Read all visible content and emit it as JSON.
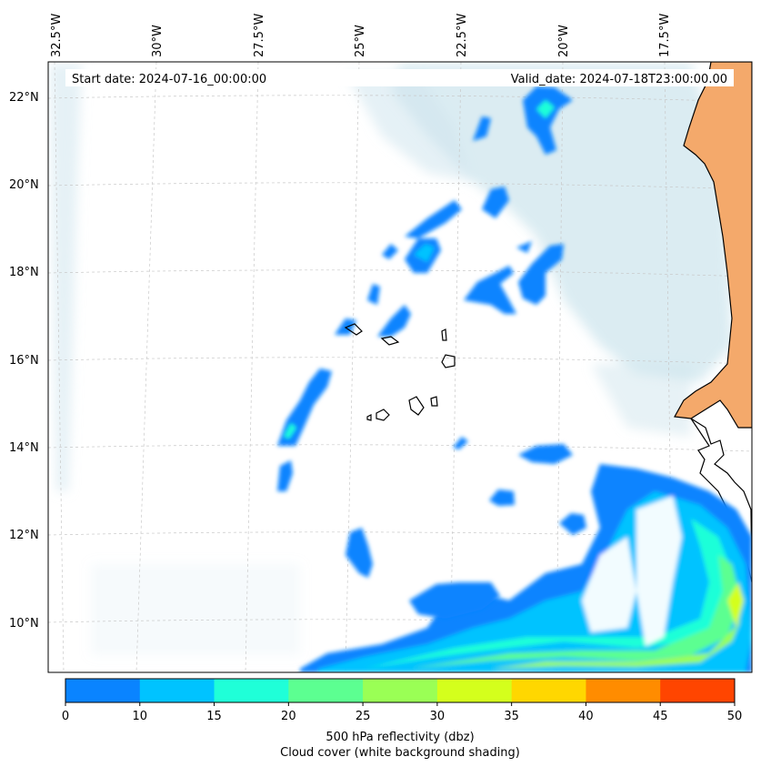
{
  "header": {
    "start_date": "Start date: 2024-07-16_00:00:00",
    "valid_date": "Valid_date: 2024-07-18T23:00:00.00"
  },
  "map": {
    "lon_labels": [
      "32.5°W",
      "30°W",
      "27.5°W",
      "25°W",
      "22.5°W",
      "20°W",
      "17.5°W"
    ],
    "lat_labels": [
      "22°N",
      "20°N",
      "18°N",
      "16°N",
      "14°N",
      "12°N",
      "10°N"
    ],
    "land_color": "#f4a96b",
    "coast_color": "#000000",
    "gridlines": true
  },
  "colorbar": {
    "bounds": [
      "0",
      "10",
      "15",
      "20",
      "25",
      "30",
      "35",
      "40",
      "45",
      "50"
    ],
    "colors": [
      "#0a84ff",
      "#00c3ff",
      "#1fffd8",
      "#5cff91",
      "#9aff55",
      "#d4ff1c",
      "#ffd700",
      "#ff8c00",
      "#ff4500"
    ],
    "label_line1": "500 hPa reflectivity (dbz)",
    "label_line2": "Cloud cover (white background shading)"
  }
}
